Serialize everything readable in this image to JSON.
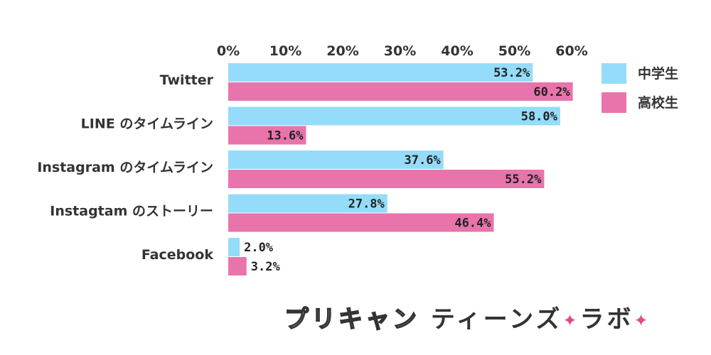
{
  "colors": {
    "junior": "#94dcfa",
    "senior": "#e874ab",
    "text": "#333333",
    "star": "#e14b8c"
  },
  "chart_data": {
    "type": "bar",
    "orientation": "horizontal",
    "categories": [
      "Twitter",
      "LINE のタイムライン",
      "Instagram のタイムライン",
      "Instagtam のストーリー",
      "Facebook"
    ],
    "series": [
      {
        "name": "中学生",
        "values": [
          53.2,
          58.0,
          37.6,
          27.8,
          2.0
        ],
        "labels": [
          "53.2%",
          "58.0%",
          "37.6%",
          "27.8%",
          "2.0%"
        ]
      },
      {
        "name": "高校生",
        "values": [
          60.2,
          13.6,
          55.2,
          46.4,
          3.2
        ],
        "labels": [
          "60.2%",
          "13.6%",
          "55.2%",
          "46.4%",
          "3.2%"
        ]
      }
    ],
    "x_ticks": [
      "0%",
      "10%",
      "20%",
      "30%",
      "40%",
      "50%",
      "60%"
    ],
    "xlim": [
      0,
      60
    ],
    "legend_position": "top-right",
    "grid": false
  },
  "logo": {
    "part1": "プリキャン",
    "part2": "ティーンズ",
    "part3": "ラボ",
    "star": "✦"
  }
}
